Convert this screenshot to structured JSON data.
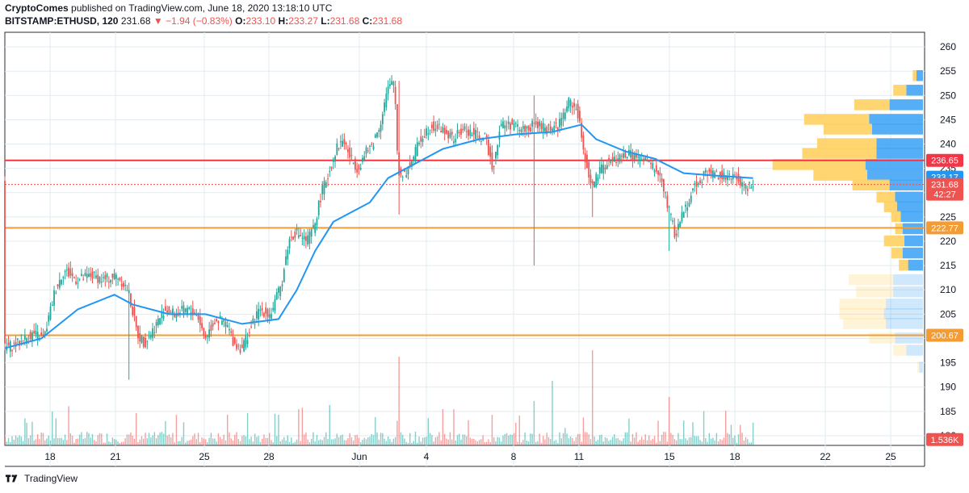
{
  "header": {
    "publisher": "CryptoComes",
    "published_text": "published on TradingView.com, June 18, 2020 13:18:10 UTC",
    "symbol": "BITSTAMP:ETHUSD, 120",
    "last": "231.68",
    "change": "▼ −1.94 (−0.83%)",
    "o_label": "O:",
    "o_val": "233.10",
    "h_label": "H:",
    "h_val": "233.27",
    "l_label": "L:",
    "l_val": "231.68",
    "c_label": "C:",
    "c_val": "231.68"
  },
  "footer": {
    "brand": "TradingView"
  },
  "colors": {
    "up": "#26a69a",
    "down": "#ef5350",
    "ma": "#2196f3",
    "resistance": "#f23645",
    "support": "#f39c33",
    "vp_up": "#ffd062",
    "vp_down": "#42a5f5"
  },
  "chart_data": {
    "type": "candlestick",
    "y_axis": {
      "ticks": [
        260,
        255,
        250,
        245,
        240,
        235,
        230,
        225,
        220,
        215,
        210,
        205,
        200,
        195,
        190,
        185,
        180
      ],
      "range": [
        178,
        263
      ]
    },
    "x_axis": {
      "tick_labels": [
        "18",
        "21",
        "25",
        "28",
        "Jun",
        "4",
        "8",
        "11",
        "15",
        "18",
        "22",
        "25"
      ]
    },
    "horizontal_levels": [
      {
        "label": "236.65",
        "value": 236.65,
        "color": "#f23645"
      },
      {
        "label": "222.77",
        "value": 222.77,
        "color": "#f39c33"
      },
      {
        "label": "200.67",
        "value": 200.67,
        "color": "#f39c33"
      }
    ],
    "price_labels": [
      {
        "label": "233.17",
        "value": 233.17,
        "color": "#2196f3"
      },
      {
        "label": "231.68",
        "value": 231.68,
        "color": "#ef5350"
      },
      {
        "label": "42:27",
        "value": 229.7,
        "color": "#ef5350"
      },
      {
        "label": "1.536K",
        "value": 179.2,
        "color": "#ef5350"
      }
    ],
    "price_path": [
      [
        0,
        198
      ],
      [
        8,
        199
      ],
      [
        16,
        201
      ],
      [
        22,
        200
      ],
      [
        28,
        210
      ],
      [
        33,
        214
      ],
      [
        40,
        212
      ],
      [
        48,
        213
      ],
      [
        55,
        212
      ],
      [
        62,
        213
      ],
      [
        68,
        210
      ],
      [
        73,
        201
      ],
      [
        77,
        199
      ],
      [
        82,
        202
      ],
      [
        88,
        206
      ],
      [
        94,
        205
      ],
      [
        100,
        206
      ],
      [
        106,
        205
      ],
      [
        110,
        200
      ],
      [
        116,
        204
      ],
      [
        122,
        203
      ],
      [
        126,
        199
      ],
      [
        130,
        198
      ],
      [
        134,
        201
      ],
      [
        140,
        206
      ],
      [
        146,
        205
      ],
      [
        152,
        211
      ],
      [
        156,
        220
      ],
      [
        160,
        222
      ],
      [
        166,
        220
      ],
      [
        170,
        223
      ],
      [
        174,
        230
      ],
      [
        178,
        234
      ],
      [
        182,
        239
      ],
      [
        186,
        241
      ],
      [
        190,
        237
      ],
      [
        194,
        235
      ],
      [
        198,
        238
      ],
      [
        202,
        240
      ],
      [
        206,
        244
      ],
      [
        210,
        251
      ],
      [
        214,
        253
      ],
      [
        216,
        234
      ],
      [
        220,
        234
      ],
      [
        224,
        237
      ],
      [
        228,
        241
      ],
      [
        234,
        244
      ],
      [
        240,
        243
      ],
      [
        246,
        241
      ],
      [
        252,
        243
      ],
      [
        258,
        242
      ],
      [
        264,
        241
      ],
      [
        268,
        235
      ],
      [
        272,
        244
      ],
      [
        278,
        244
      ],
      [
        284,
        243
      ],
      [
        292,
        244
      ],
      [
        298,
        243
      ],
      [
        304,
        244
      ],
      [
        310,
        249
      ],
      [
        314,
        247
      ],
      [
        318,
        238
      ],
      [
        322,
        231
      ],
      [
        326,
        234
      ],
      [
        330,
        236
      ],
      [
        336,
        237
      ],
      [
        342,
        238
      ],
      [
        348,
        237
      ],
      [
        354,
        236
      ],
      [
        360,
        233
      ],
      [
        364,
        227
      ],
      [
        368,
        221
      ],
      [
        372,
        226
      ],
      [
        378,
        231
      ],
      [
        384,
        234
      ],
      [
        390,
        234
      ],
      [
        396,
        233
      ],
      [
        402,
        233
      ],
      [
        406,
        231
      ],
      [
        410,
        232
      ]
    ],
    "ma_path": [
      [
        0,
        198
      ],
      [
        20,
        200
      ],
      [
        40,
        206
      ],
      [
        60,
        209
      ],
      [
        70,
        207
      ],
      [
        90,
        205
      ],
      [
        110,
        205
      ],
      [
        130,
        203
      ],
      [
        150,
        204
      ],
      [
        160,
        210
      ],
      [
        170,
        218
      ],
      [
        180,
        224
      ],
      [
        200,
        228
      ],
      [
        210,
        233
      ],
      [
        220,
        235
      ],
      [
        240,
        239
      ],
      [
        260,
        241
      ],
      [
        280,
        242
      ],
      [
        300,
        242.5
      ],
      [
        316,
        244
      ],
      [
        324,
        241
      ],
      [
        340,
        238.5
      ],
      [
        356,
        237
      ],
      [
        372,
        234
      ],
      [
        390,
        233.5
      ],
      [
        410,
        233
      ]
    ],
    "volume_profile": [
      {
        "price": 254,
        "up": 4,
        "down": 7
      },
      {
        "price": 251,
        "up": 14,
        "down": 18
      },
      {
        "price": 248,
        "up": 38,
        "down": 36
      },
      {
        "price": 245,
        "up": 70,
        "down": 58
      },
      {
        "price": 243,
        "up": 52,
        "down": 55
      },
      {
        "price": 240,
        "up": 64,
        "down": 50
      },
      {
        "price": 238,
        "up": 80,
        "down": 50
      },
      {
        "price": 235.7,
        "up": 100,
        "down": 62
      },
      {
        "price": 233.5,
        "up": 58,
        "down": 60
      },
      {
        "price": 231.5,
        "up": 40,
        "down": 36
      },
      {
        "price": 229,
        "up": 20,
        "down": 30
      },
      {
        "price": 227,
        "up": 14,
        "down": 28
      },
      {
        "price": 225,
        "up": 10,
        "down": 24
      },
      {
        "price": 222.5,
        "up": 8,
        "down": 22
      },
      {
        "price": 220,
        "up": 22,
        "down": 20
      },
      {
        "price": 217.5,
        "up": 12,
        "down": 22
      },
      {
        "price": 215,
        "up": 10,
        "down": 16
      },
      {
        "price": 212,
        "up": 48,
        "down": 32
      },
      {
        "price": 209.5,
        "up": 40,
        "down": 32
      },
      {
        "price": 207,
        "up": 50,
        "down": 40
      },
      {
        "price": 205,
        "up": 48,
        "down": 42
      },
      {
        "price": 203,
        "up": 46,
        "down": 40
      },
      {
        "price": 200,
        "up": 28,
        "down": 30
      },
      {
        "price": 197.5,
        "up": 14,
        "down": 18
      },
      {
        "price": 194,
        "up": 2,
        "down": 4
      }
    ]
  }
}
